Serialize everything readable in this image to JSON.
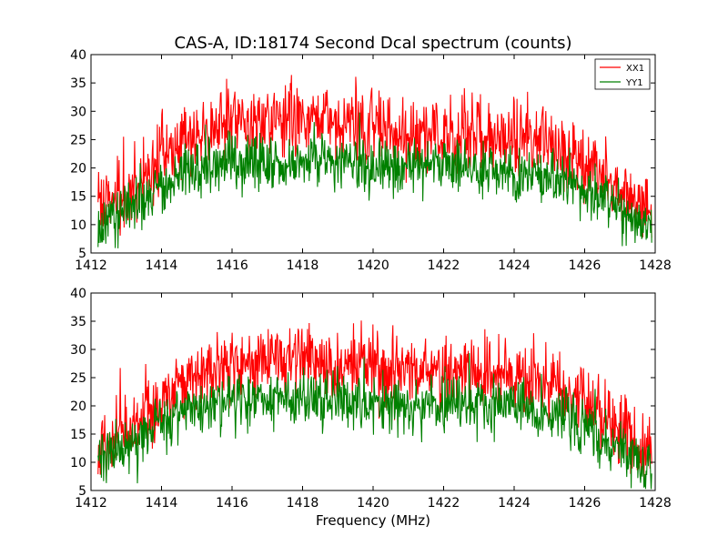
{
  "chart_data": [
    {
      "type": "line",
      "title": "CAS-A, ID:18174 Second Dcal spectrum (counts)",
      "xlabel": "",
      "ylabel": "",
      "xlim": [
        1412,
        1428
      ],
      "ylim": [
        5,
        40
      ],
      "xticks": [
        "1412",
        "1414",
        "1416",
        "1418",
        "1420",
        "1422",
        "1424",
        "1426",
        "1428"
      ],
      "yticks": [
        "5",
        "10",
        "15",
        "20",
        "25",
        "30",
        "35",
        "40"
      ],
      "grid": false,
      "legend": "top-right",
      "series": [
        {
          "name": "XX1",
          "color": "#ff0000",
          "x": [
            1412.2,
            1412.5,
            1413.0,
            1413.5,
            1414.0,
            1414.5,
            1415.0,
            1415.5,
            1416.0,
            1416.5,
            1417.0,
            1417.5,
            1418.0,
            1418.5,
            1419.0,
            1419.5,
            1420.0,
            1420.5,
            1421.0,
            1421.5,
            1422.0,
            1422.5,
            1423.0,
            1423.5,
            1424.0,
            1424.5,
            1425.0,
            1425.5,
            1426.0,
            1426.5,
            1427.0,
            1427.5,
            1427.9
          ],
          "values": [
            13.0,
            13.5,
            15.5,
            18.5,
            21.5,
            23.5,
            25.5,
            26.8,
            27.5,
            28.0,
            28.3,
            28.5,
            28.3,
            28.0,
            27.5,
            27.0,
            26.5,
            26.3,
            26.0,
            26.0,
            25.8,
            26.0,
            26.0,
            25.8,
            25.5,
            25.0,
            24.2,
            23.0,
            21.0,
            18.5,
            16.0,
            13.5,
            12.0
          ]
        },
        {
          "name": "YY1",
          "color": "#008000",
          "x": [
            1412.2,
            1412.5,
            1413.0,
            1413.5,
            1414.0,
            1414.5,
            1415.0,
            1415.5,
            1416.0,
            1416.5,
            1417.0,
            1417.5,
            1418.0,
            1418.5,
            1419.0,
            1419.5,
            1420.0,
            1420.5,
            1421.0,
            1421.5,
            1422.0,
            1422.5,
            1423.0,
            1423.5,
            1424.0,
            1424.5,
            1425.0,
            1425.5,
            1426.0,
            1426.5,
            1427.0,
            1427.5,
            1427.9
          ],
          "values": [
            10.0,
            10.5,
            12.5,
            14.8,
            17.0,
            18.5,
            19.8,
            20.5,
            20.8,
            21.0,
            21.2,
            21.3,
            21.2,
            21.0,
            20.8,
            20.5,
            20.2,
            20.0,
            19.8,
            19.7,
            19.6,
            19.7,
            19.8,
            19.7,
            19.5,
            19.2,
            18.5,
            17.5,
            16.0,
            14.5,
            12.5,
            10.5,
            9.0
          ]
        }
      ]
    },
    {
      "type": "line",
      "title": "",
      "xlabel": "Frequency (MHz)",
      "ylabel": "",
      "xlim": [
        1412,
        1428
      ],
      "ylim": [
        5,
        40
      ],
      "xticks": [
        "1412",
        "1414",
        "1416",
        "1418",
        "1420",
        "1422",
        "1424",
        "1426",
        "1428"
      ],
      "yticks": [
        "5",
        "10",
        "15",
        "20",
        "25",
        "30",
        "35",
        "40"
      ],
      "grid": false,
      "legend": "none",
      "series": [
        {
          "color": "#ff0000",
          "x": [
            1412.2,
            1412.5,
            1413.0,
            1413.5,
            1414.0,
            1414.5,
            1415.0,
            1415.5,
            1416.0,
            1416.5,
            1417.0,
            1417.5,
            1418.0,
            1418.5,
            1419.0,
            1419.5,
            1420.0,
            1420.5,
            1421.0,
            1421.5,
            1422.0,
            1422.5,
            1423.0,
            1423.5,
            1424.0,
            1424.5,
            1425.0,
            1425.5,
            1426.0,
            1426.5,
            1427.0,
            1427.5,
            1427.9
          ],
          "values": [
            13.0,
            13.5,
            15.5,
            18.5,
            21.5,
            23.5,
            25.5,
            26.8,
            27.5,
            28.0,
            28.3,
            28.5,
            28.3,
            28.0,
            27.5,
            27.0,
            26.5,
            26.3,
            26.0,
            26.0,
            25.8,
            26.0,
            26.0,
            25.8,
            25.5,
            25.0,
            24.2,
            23.0,
            21.0,
            18.5,
            16.0,
            13.5,
            12.0
          ]
        },
        {
          "color": "#008000",
          "x": [
            1412.2,
            1412.5,
            1413.0,
            1413.5,
            1414.0,
            1414.5,
            1415.0,
            1415.5,
            1416.0,
            1416.5,
            1417.0,
            1417.5,
            1418.0,
            1418.5,
            1419.0,
            1419.5,
            1420.0,
            1420.5,
            1421.0,
            1421.5,
            1422.0,
            1422.5,
            1423.0,
            1423.5,
            1424.0,
            1424.5,
            1425.0,
            1425.5,
            1426.0,
            1426.5,
            1427.0,
            1427.5,
            1427.9
          ],
          "values": [
            10.0,
            10.5,
            12.5,
            14.8,
            17.0,
            18.5,
            19.8,
            20.5,
            20.8,
            21.0,
            21.2,
            21.3,
            21.2,
            21.0,
            20.8,
            20.5,
            20.2,
            20.0,
            19.8,
            19.7,
            19.6,
            19.7,
            19.8,
            19.7,
            19.5,
            19.2,
            18.5,
            17.5,
            16.0,
            14.5,
            12.5,
            10.5,
            9.0
          ]
        }
      ]
    }
  ]
}
